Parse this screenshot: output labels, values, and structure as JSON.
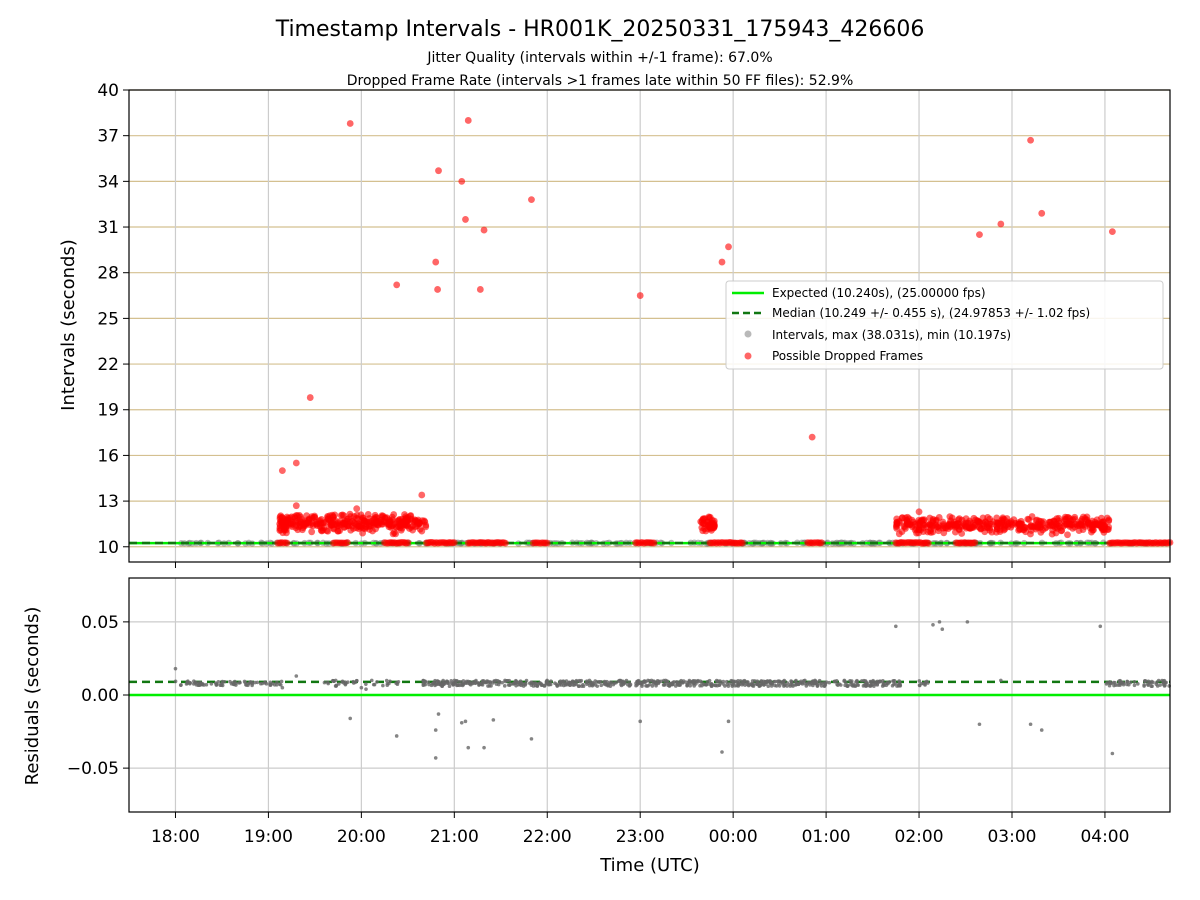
{
  "chart_data": [
    {
      "type": "scatter",
      "title": "Timestamp Intervals - HR001K_20250331_175943_426606",
      "subtitles": [
        "Jitter Quality (intervals within +/-1 frame): 67.0%",
        "Dropped Frame Rate (intervals >1 frames late within 50 FF files): 52.9%"
      ],
      "xlabel": "",
      "ylabel": "Intervals (seconds)",
      "x_unit": "hours since 18:00 UTC",
      "xlim": [
        -0.5,
        10.7
      ],
      "ylim": [
        9,
        40
      ],
      "yticks": [
        10,
        13,
        16,
        19,
        22,
        25,
        28,
        31,
        34,
        37,
        40
      ],
      "grid": true,
      "legend_position": "center-right",
      "colors": {
        "expected": "#00ee00",
        "median": "#117711",
        "intervals": "#808080",
        "dropped": "#ff0000",
        "hgrid": "#d4c090",
        "vgrid": "#cccccc"
      },
      "series": [
        {
          "name": "Expected (10.240s), (25.00000 fps)",
          "kind": "hline",
          "y": 10.24
        },
        {
          "name": "Median (10.249 +/- 0.455 s), (24.97853 +/- 1.02 fps)",
          "kind": "hline-dashed",
          "y": 10.249
        },
        {
          "name": "Intervals, max (38.031s), min (10.197s)",
          "kind": "points",
          "bands": [
            {
              "x0": 0.0,
              "x1": 10.7,
              "y": 10.24,
              "spread": 0.06,
              "count": 280
            }
          ]
        },
        {
          "name": "Possible Dropped Frames",
          "kind": "points",
          "points": [
            [
              1.15,
              15.0
            ],
            [
              1.3,
              15.5
            ],
            [
              1.45,
              19.8
            ],
            [
              1.88,
              37.8
            ],
            [
              2.38,
              27.2
            ],
            [
              2.65,
              13.4
            ],
            [
              2.8,
              28.7
            ],
            [
              2.82,
              26.9
            ],
            [
              2.83,
              34.7
            ],
            [
              3.08,
              34.0
            ],
            [
              3.12,
              31.5
            ],
            [
              3.15,
              38.0
            ],
            [
              3.28,
              26.9
            ],
            [
              3.32,
              30.8
            ],
            [
              3.83,
              32.8
            ],
            [
              5.0,
              26.5
            ],
            [
              5.88,
              28.7
            ],
            [
              5.95,
              29.7
            ],
            [
              6.85,
              17.2
            ],
            [
              8.65,
              30.5
            ],
            [
              8.88,
              31.2
            ],
            [
              9.2,
              36.7
            ],
            [
              9.32,
              31.9
            ],
            [
              10.08,
              30.7
            ],
            [
              1.3,
              12.7
            ],
            [
              1.95,
              12.5
            ],
            [
              8.0,
              12.3
            ]
          ],
          "clusters": [
            {
              "x0": 1.12,
              "x1": 2.7,
              "ymin": 10.3,
              "ymax": 12.2,
              "count": 320
            },
            {
              "x0": 5.65,
              "x1": 5.8,
              "ymin": 10.5,
              "ymax": 12.0,
              "count": 40
            },
            {
              "x0": 7.75,
              "x1": 10.05,
              "ymin": 10.3,
              "ymax": 12.0,
              "count": 380
            }
          ],
          "baseline_runs": [
            [
              1.1,
              1.2
            ],
            [
              1.7,
              1.85
            ],
            [
              2.25,
              2.5
            ],
            [
              2.7,
              3.0
            ],
            [
              3.15,
              3.55
            ],
            [
              3.85,
              4.0
            ],
            [
              4.95,
              5.15
            ],
            [
              5.75,
              6.1
            ],
            [
              6.8,
              6.95
            ],
            [
              7.75,
              8.1
            ],
            [
              8.4,
              8.6
            ],
            [
              10.05,
              10.7
            ]
          ]
        }
      ]
    },
    {
      "type": "scatter",
      "title": "",
      "xlabel": "Time (UTC)",
      "ylabel": "Residuals (seconds)",
      "xlim": [
        -0.5,
        10.7
      ],
      "ylim": [
        -0.08,
        0.08
      ],
      "yticks": [
        -0.05,
        0.0,
        0.05
      ],
      "ytick_labels": [
        "−0.05",
        "0.00",
        "0.05"
      ],
      "xticks": [
        0,
        1,
        2,
        3,
        4,
        5,
        6,
        7,
        8,
        9,
        10
      ],
      "xtick_labels": [
        "18:00",
        "19:00",
        "20:00",
        "21:00",
        "22:00",
        "23:00",
        "00:00",
        "01:00",
        "02:00",
        "03:00",
        "04:00"
      ],
      "grid": true,
      "series": [
        {
          "name": "Expected",
          "kind": "hline",
          "y": 0.0
        },
        {
          "name": "Median",
          "kind": "hline-dashed",
          "y": 0.009
        },
        {
          "name": "Residuals",
          "kind": "points",
          "bands": [
            {
              "x0": 0.0,
              "x1": 1.2,
              "y": 0.008,
              "spread": 0.0015,
              "count": 80
            },
            {
              "x0": 2.65,
              "x1": 7.8,
              "y": 0.008,
              "spread": 0.002,
              "count": 650
            },
            {
              "x0": 8.0,
              "x1": 8.1,
              "y": 0.008,
              "spread": 0.002,
              "count": 10
            },
            {
              "x0": 10.0,
              "x1": 10.7,
              "y": 0.008,
              "spread": 0.002,
              "count": 60
            },
            {
              "x0": 1.6,
              "x1": 2.4,
              "y": 0.008,
              "spread": 0.002,
              "count": 40
            }
          ],
          "points": [
            [
              0.0,
              0.018
            ],
            [
              1.3,
              0.013
            ],
            [
              1.88,
              -0.016
            ],
            [
              2.38,
              -0.028
            ],
            [
              2.8,
              -0.024
            ],
            [
              2.83,
              -0.013
            ],
            [
              2.8,
              -0.043
            ],
            [
              3.08,
              -0.019
            ],
            [
              3.12,
              -0.018
            ],
            [
              3.15,
              -0.036
            ],
            [
              3.32,
              -0.036
            ],
            [
              3.42,
              -0.017
            ],
            [
              3.83,
              -0.03
            ],
            [
              5.0,
              -0.018
            ],
            [
              5.88,
              -0.039
            ],
            [
              5.95,
              -0.018
            ],
            [
              7.75,
              0.047
            ],
            [
              8.15,
              0.048
            ],
            [
              8.22,
              0.05
            ],
            [
              8.25,
              0.045
            ],
            [
              8.52,
              0.05
            ],
            [
              8.65,
              -0.02
            ],
            [
              8.88,
              0.01
            ],
            [
              9.2,
              -0.02
            ],
            [
              9.32,
              -0.024
            ],
            [
              9.95,
              0.047
            ],
            [
              10.08,
              -0.04
            ],
            [
              1.15,
              0.005
            ],
            [
              2.0,
              0.005
            ],
            [
              2.05,
              0.004
            ]
          ]
        }
      ]
    }
  ]
}
